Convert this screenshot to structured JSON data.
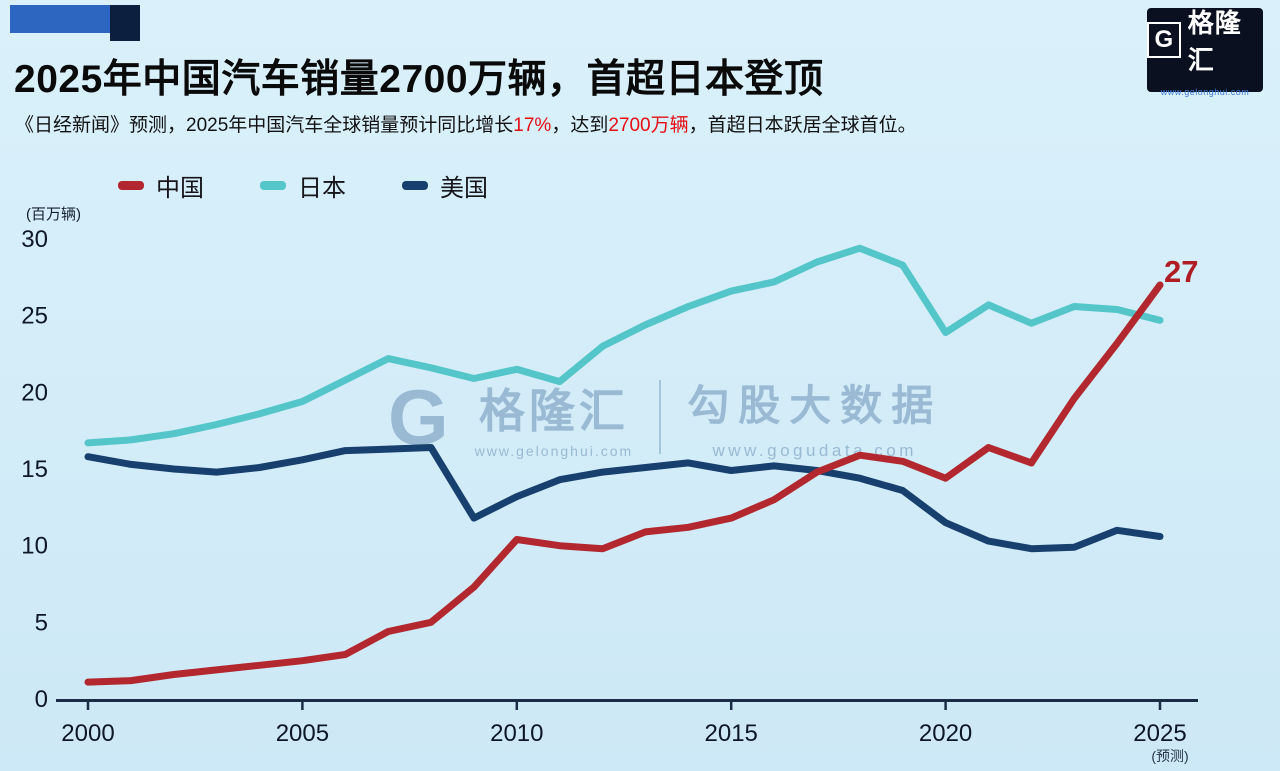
{
  "header": {
    "title": "2025年中国汽车销量2700万辆，首超日本登顶",
    "subtitle_parts": [
      {
        "text": "《日经新闻》预测，2025年中国汽车全球销量预计同比增长",
        "red": false
      },
      {
        "text": "17%",
        "red": true
      },
      {
        "text": "，达到",
        "red": false
      },
      {
        "text": "2700万辆",
        "red": true
      },
      {
        "text": "，首超日本跃居全球首位。",
        "red": false
      }
    ],
    "accent_color": "#e50e14"
  },
  "logo": {
    "glyph": "G",
    "name": "格隆汇",
    "url": "www.gelonghui.com"
  },
  "watermark": {
    "left_glyph": "G",
    "left_name": "格隆汇",
    "left_url": "www.gelonghui.com",
    "right_name": "勾股大数据",
    "right_url": "www.gogudata.com"
  },
  "chart_data": {
    "type": "line",
    "unit_label": "(百万辆)",
    "x": [
      2000,
      2001,
      2002,
      2003,
      2004,
      2005,
      2006,
      2007,
      2008,
      2009,
      2010,
      2011,
      2012,
      2013,
      2014,
      2015,
      2016,
      2017,
      2018,
      2019,
      2020,
      2021,
      2022,
      2023,
      2024,
      2025
    ],
    "series": [
      {
        "name": "中国",
        "color": "#b2282e",
        "values": [
          1.1,
          1.2,
          1.6,
          1.9,
          2.2,
          2.5,
          2.9,
          4.4,
          5.0,
          7.3,
          10.4,
          10.0,
          9.8,
          10.9,
          11.2,
          11.8,
          13.0,
          14.8,
          15.9,
          15.5,
          14.4,
          16.4,
          15.4,
          19.6,
          23.2,
          27.0
        ]
      },
      {
        "name": "日本",
        "color": "#54c6c9",
        "values": [
          16.7,
          16.9,
          17.3,
          17.9,
          18.6,
          19.4,
          20.8,
          22.2,
          21.6,
          20.9,
          21.5,
          20.7,
          23.0,
          24.4,
          25.6,
          26.6,
          27.2,
          28.5,
          29.4,
          28.3,
          23.9,
          25.7,
          24.5,
          25.6,
          25.4,
          24.7
        ]
      },
      {
        "name": "美国",
        "color": "#17406e",
        "values": [
          15.8,
          15.3,
          15.0,
          14.8,
          15.1,
          15.6,
          16.2,
          16.3,
          16.4,
          11.8,
          13.2,
          14.3,
          14.8,
          15.1,
          15.4,
          14.9,
          15.2,
          14.9,
          14.4,
          13.6,
          11.5,
          10.3,
          9.8,
          9.9,
          11.0,
          10.6
        ]
      }
    ],
    "yticks": [
      0,
      5,
      10,
      15,
      20,
      25,
      30
    ],
    "xticks": [
      2000,
      2005,
      2010,
      2015,
      2020,
      2025
    ],
    "xtick_note": {
      "year": 2025,
      "label": "(预测)"
    },
    "ylim": [
      0,
      30
    ],
    "grid": false,
    "legend_position": "top-left",
    "annotation": {
      "text": "27",
      "color": "#b01d22"
    }
  }
}
